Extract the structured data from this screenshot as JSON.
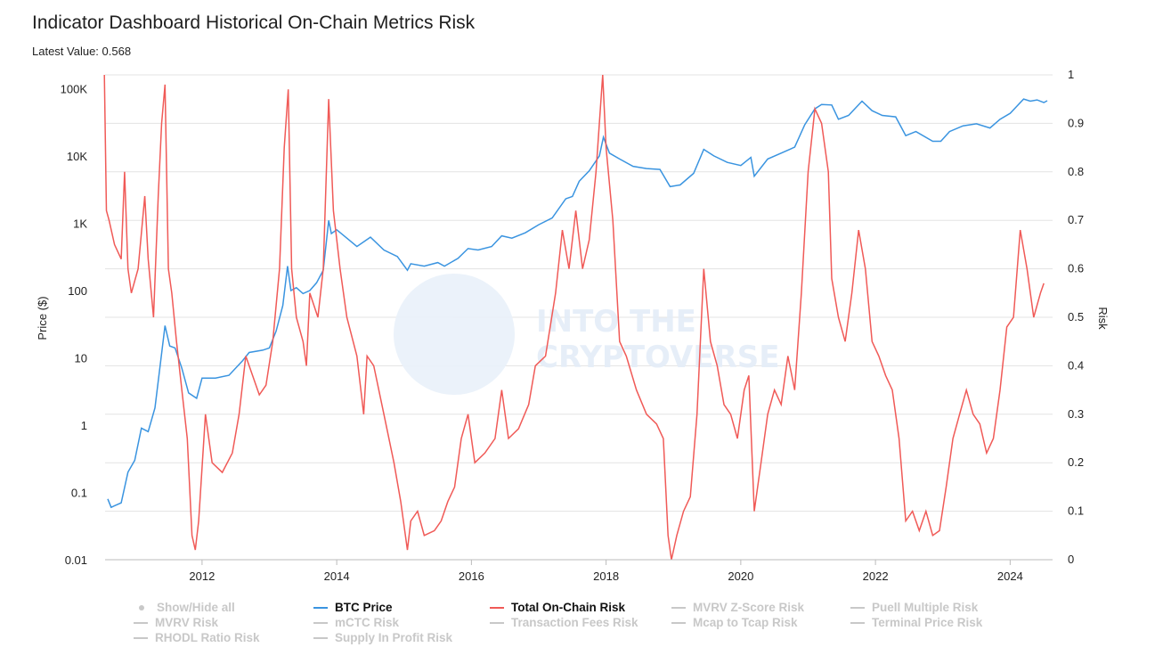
{
  "header": {
    "title": "Indicator Dashboard Historical On-Chain Metrics Risk",
    "subtitle": "Latest Value: 0.568"
  },
  "watermark": {
    "line1": "INTO THE",
    "line2": "CRYPTOVERSE"
  },
  "colors": {
    "btc": "#3a94e0",
    "risk": "#f05a57",
    "grid": "#e3e3e3",
    "inactive": "#c8c8c8"
  },
  "legend": {
    "show_hide_all": "Show/Hide all",
    "items": [
      {
        "label": "BTC Price",
        "active": true
      },
      {
        "label": "Total On-Chain Risk",
        "active": true
      },
      {
        "label": "MVRV Z-Score Risk",
        "active": false
      },
      {
        "label": "Puell Multiple Risk",
        "active": false
      },
      {
        "label": "MVRV Risk",
        "active": false
      },
      {
        "label": "mCTC Risk",
        "active": false
      },
      {
        "label": "Transaction Fees Risk",
        "active": false
      },
      {
        "label": "Mcap to Tcap Risk",
        "active": false
      },
      {
        "label": "Terminal Price Risk",
        "active": false
      },
      {
        "label": "RHODL Ratio Risk",
        "active": false
      },
      {
        "label": "Supply In Profit Risk",
        "active": false
      }
    ]
  },
  "chart_data": {
    "type": "line",
    "title": "Indicator Dashboard Historical On-Chain Metrics Risk",
    "xlabel": "",
    "xlim": [
      2010.56,
      2024.63
    ],
    "x_ticks": [
      "2012",
      "2014",
      "2016",
      "2018",
      "2020",
      "2022",
      "2024"
    ],
    "y_left": {
      "label": "Price ($)",
      "scale": "log",
      "range": [
        0.01,
        160000
      ],
      "ticks": [
        "0.01",
        "0.1",
        "1",
        "10",
        "100",
        "1K",
        "10K",
        "100K"
      ]
    },
    "y_right": {
      "label": "Risk",
      "range": [
        0,
        1
      ],
      "ticks": [
        "0",
        "0.1",
        "0.2",
        "0.3",
        "0.4",
        "0.5",
        "0.6",
        "0.7",
        "0.8",
        "0.9",
        "1"
      ]
    },
    "grid": true,
    "legend_position": "bottom",
    "series": [
      {
        "name": "BTC Price",
        "axis": "left",
        "points": [
          [
            2010.6,
            0.08
          ],
          [
            2010.65,
            0.06
          ],
          [
            2010.8,
            0.07
          ],
          [
            2010.9,
            0.2
          ],
          [
            2011.0,
            0.3
          ],
          [
            2011.1,
            0.9
          ],
          [
            2011.2,
            0.8
          ],
          [
            2011.3,
            1.8
          ],
          [
            2011.38,
            8
          ],
          [
            2011.45,
            30
          ],
          [
            2011.52,
            15
          ],
          [
            2011.6,
            14
          ],
          [
            2011.7,
            7
          ],
          [
            2011.8,
            3
          ],
          [
            2011.92,
            2.5
          ],
          [
            2012.0,
            5
          ],
          [
            2012.1,
            5
          ],
          [
            2012.2,
            5
          ],
          [
            2012.4,
            5.5
          ],
          [
            2012.6,
            9
          ],
          [
            2012.7,
            12
          ],
          [
            2012.9,
            13
          ],
          [
            2013.0,
            14
          ],
          [
            2013.1,
            25
          ],
          [
            2013.2,
            60
          ],
          [
            2013.27,
            230
          ],
          [
            2013.32,
            100
          ],
          [
            2013.4,
            110
          ],
          [
            2013.5,
            90
          ],
          [
            2013.6,
            100
          ],
          [
            2013.7,
            130
          ],
          [
            2013.8,
            200
          ],
          [
            2013.88,
            1100
          ],
          [
            2013.92,
            700
          ],
          [
            2014.0,
            800
          ],
          [
            2014.15,
            600
          ],
          [
            2014.3,
            450
          ],
          [
            2014.5,
            620
          ],
          [
            2014.7,
            400
          ],
          [
            2014.9,
            320
          ],
          [
            2015.05,
            200
          ],
          [
            2015.1,
            250
          ],
          [
            2015.3,
            230
          ],
          [
            2015.5,
            260
          ],
          [
            2015.6,
            230
          ],
          [
            2015.8,
            300
          ],
          [
            2015.95,
            420
          ],
          [
            2016.1,
            400
          ],
          [
            2016.3,
            450
          ],
          [
            2016.45,
            650
          ],
          [
            2016.6,
            600
          ],
          [
            2016.8,
            720
          ],
          [
            2017.0,
            950
          ],
          [
            2017.2,
            1200
          ],
          [
            2017.4,
            2300
          ],
          [
            2017.5,
            2500
          ],
          [
            2017.6,
            4200
          ],
          [
            2017.75,
            6000
          ],
          [
            2017.9,
            10000
          ],
          [
            2017.96,
            19000
          ],
          [
            2018.05,
            11000
          ],
          [
            2018.2,
            9000
          ],
          [
            2018.4,
            7000
          ],
          [
            2018.6,
            6500
          ],
          [
            2018.8,
            6300
          ],
          [
            2018.95,
            3500
          ],
          [
            2019.1,
            3700
          ],
          [
            2019.3,
            5500
          ],
          [
            2019.45,
            12500
          ],
          [
            2019.6,
            10000
          ],
          [
            2019.8,
            8000
          ],
          [
            2020.0,
            7200
          ],
          [
            2020.15,
            9500
          ],
          [
            2020.2,
            5000
          ],
          [
            2020.4,
            9000
          ],
          [
            2020.6,
            11000
          ],
          [
            2020.8,
            13500
          ],
          [
            2020.95,
            29000
          ],
          [
            2021.1,
            50000
          ],
          [
            2021.2,
            58000
          ],
          [
            2021.35,
            57000
          ],
          [
            2021.45,
            35000
          ],
          [
            2021.6,
            40000
          ],
          [
            2021.8,
            65000
          ],
          [
            2021.95,
            47000
          ],
          [
            2022.1,
            40000
          ],
          [
            2022.3,
            38000
          ],
          [
            2022.45,
            20000
          ],
          [
            2022.6,
            23000
          ],
          [
            2022.85,
            16500
          ],
          [
            2022.97,
            16500
          ],
          [
            2023.1,
            23000
          ],
          [
            2023.3,
            28000
          ],
          [
            2023.5,
            30000
          ],
          [
            2023.7,
            26000
          ],
          [
            2023.85,
            35000
          ],
          [
            2024.0,
            43000
          ],
          [
            2024.2,
            70000
          ],
          [
            2024.3,
            65000
          ],
          [
            2024.4,
            68000
          ],
          [
            2024.5,
            62000
          ],
          [
            2024.55,
            66000
          ]
        ]
      },
      {
        "name": "Total On-Chain Risk",
        "axis": "right",
        "points": [
          [
            2010.55,
            1.0
          ],
          [
            2010.58,
            0.72
          ],
          [
            2010.62,
            0.7
          ],
          [
            2010.7,
            0.65
          ],
          [
            2010.8,
            0.62
          ],
          [
            2010.85,
            0.8
          ],
          [
            2010.9,
            0.6
          ],
          [
            2010.95,
            0.55
          ],
          [
            2011.05,
            0.6
          ],
          [
            2011.15,
            0.75
          ],
          [
            2011.2,
            0.62
          ],
          [
            2011.28,
            0.5
          ],
          [
            2011.35,
            0.75
          ],
          [
            2011.4,
            0.9
          ],
          [
            2011.45,
            0.98
          ],
          [
            2011.5,
            0.6
          ],
          [
            2011.55,
            0.55
          ],
          [
            2011.62,
            0.45
          ],
          [
            2011.7,
            0.35
          ],
          [
            2011.78,
            0.25
          ],
          [
            2011.85,
            0.05
          ],
          [
            2011.9,
            0.02
          ],
          [
            2011.95,
            0.08
          ],
          [
            2012.05,
            0.3
          ],
          [
            2012.15,
            0.2
          ],
          [
            2012.3,
            0.18
          ],
          [
            2012.45,
            0.22
          ],
          [
            2012.55,
            0.3
          ],
          [
            2012.65,
            0.42
          ],
          [
            2012.75,
            0.38
          ],
          [
            2012.85,
            0.34
          ],
          [
            2012.95,
            0.36
          ],
          [
            2013.05,
            0.45
          ],
          [
            2013.15,
            0.6
          ],
          [
            2013.22,
            0.85
          ],
          [
            2013.28,
            0.97
          ],
          [
            2013.33,
            0.6
          ],
          [
            2013.4,
            0.5
          ],
          [
            2013.5,
            0.45
          ],
          [
            2013.55,
            0.4
          ],
          [
            2013.6,
            0.55
          ],
          [
            2013.72,
            0.5
          ],
          [
            2013.8,
            0.6
          ],
          [
            2013.88,
            0.95
          ],
          [
            2013.95,
            0.72
          ],
          [
            2014.05,
            0.6
          ],
          [
            2014.15,
            0.5
          ],
          [
            2014.3,
            0.42
          ],
          [
            2014.4,
            0.3
          ],
          [
            2014.45,
            0.42
          ],
          [
            2014.55,
            0.4
          ],
          [
            2014.7,
            0.3
          ],
          [
            2014.85,
            0.2
          ],
          [
            2014.95,
            0.12
          ],
          [
            2015.05,
            0.02
          ],
          [
            2015.1,
            0.08
          ],
          [
            2015.2,
            0.1
          ],
          [
            2015.3,
            0.05
          ],
          [
            2015.45,
            0.06
          ],
          [
            2015.55,
            0.08
          ],
          [
            2015.65,
            0.12
          ],
          [
            2015.75,
            0.15
          ],
          [
            2015.85,
            0.25
          ],
          [
            2015.95,
            0.3
          ],
          [
            2016.05,
            0.2
          ],
          [
            2016.2,
            0.22
          ],
          [
            2016.35,
            0.25
          ],
          [
            2016.45,
            0.35
          ],
          [
            2016.55,
            0.25
          ],
          [
            2016.7,
            0.27
          ],
          [
            2016.85,
            0.32
          ],
          [
            2016.95,
            0.4
          ],
          [
            2017.1,
            0.42
          ],
          [
            2017.25,
            0.55
          ],
          [
            2017.35,
            0.68
          ],
          [
            2017.45,
            0.6
          ],
          [
            2017.55,
            0.72
          ],
          [
            2017.65,
            0.6
          ],
          [
            2017.75,
            0.66
          ],
          [
            2017.85,
            0.8
          ],
          [
            2017.95,
            1.0
          ],
          [
            2018.0,
            0.85
          ],
          [
            2018.1,
            0.7
          ],
          [
            2018.2,
            0.45
          ],
          [
            2018.3,
            0.42
          ],
          [
            2018.45,
            0.35
          ],
          [
            2018.6,
            0.3
          ],
          [
            2018.75,
            0.28
          ],
          [
            2018.85,
            0.25
          ],
          [
            2018.92,
            0.05
          ],
          [
            2018.97,
            0.0
          ],
          [
            2019.05,
            0.05
          ],
          [
            2019.15,
            0.1
          ],
          [
            2019.25,
            0.13
          ],
          [
            2019.35,
            0.3
          ],
          [
            2019.45,
            0.6
          ],
          [
            2019.55,
            0.45
          ],
          [
            2019.65,
            0.4
          ],
          [
            2019.75,
            0.32
          ],
          [
            2019.85,
            0.3
          ],
          [
            2019.95,
            0.25
          ],
          [
            2020.05,
            0.35
          ],
          [
            2020.12,
            0.38
          ],
          [
            2020.2,
            0.1
          ],
          [
            2020.3,
            0.2
          ],
          [
            2020.4,
            0.3
          ],
          [
            2020.5,
            0.35
          ],
          [
            2020.6,
            0.32
          ],
          [
            2020.7,
            0.42
          ],
          [
            2020.8,
            0.35
          ],
          [
            2020.9,
            0.55
          ],
          [
            2021.0,
            0.8
          ],
          [
            2021.1,
            0.93
          ],
          [
            2021.2,
            0.9
          ],
          [
            2021.3,
            0.8
          ],
          [
            2021.35,
            0.58
          ],
          [
            2021.45,
            0.5
          ],
          [
            2021.55,
            0.45
          ],
          [
            2021.65,
            0.55
          ],
          [
            2021.75,
            0.68
          ],
          [
            2021.85,
            0.6
          ],
          [
            2021.95,
            0.45
          ],
          [
            2022.05,
            0.42
          ],
          [
            2022.15,
            0.38
          ],
          [
            2022.25,
            0.35
          ],
          [
            2022.35,
            0.25
          ],
          [
            2022.45,
            0.08
          ],
          [
            2022.55,
            0.1
          ],
          [
            2022.65,
            0.06
          ],
          [
            2022.75,
            0.1
          ],
          [
            2022.85,
            0.05
          ],
          [
            2022.95,
            0.06
          ],
          [
            2023.05,
            0.15
          ],
          [
            2023.15,
            0.25
          ],
          [
            2023.25,
            0.3
          ],
          [
            2023.35,
            0.35
          ],
          [
            2023.45,
            0.3
          ],
          [
            2023.55,
            0.28
          ],
          [
            2023.65,
            0.22
          ],
          [
            2023.75,
            0.25
          ],
          [
            2023.85,
            0.35
          ],
          [
            2023.95,
            0.48
          ],
          [
            2024.05,
            0.5
          ],
          [
            2024.15,
            0.68
          ],
          [
            2024.25,
            0.6
          ],
          [
            2024.35,
            0.5
          ],
          [
            2024.45,
            0.55
          ],
          [
            2024.5,
            0.57
          ]
        ]
      }
    ]
  }
}
